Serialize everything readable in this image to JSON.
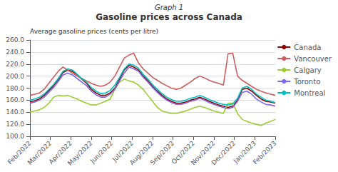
{
  "chart_data": {
    "type": "line",
    "title": "Graph 1",
    "subtitle": "Gasoline prices across Canada",
    "y_label": "Average gasoline prices (cents per litre)",
    "x": [
      0,
      0.2308,
      0.4615,
      0.6923,
      0.9231,
      1.1538,
      1.3846,
      1.6154,
      1.8462,
      2.0769,
      2.3077,
      2.5385,
      2.7692,
      3,
      3.2308,
      3.4615,
      3.6923,
      3.9231,
      4.1538,
      4.3846,
      4.6154,
      4.8462,
      5.0769,
      5.3077,
      5.5385,
      5.7692,
      6,
      6.2308,
      6.4615,
      6.6923,
      6.9231,
      7.1538,
      7.3846,
      7.6154,
      7.8462,
      8.0769,
      8.3077,
      8.5385,
      8.7692,
      9,
      9.2308,
      9.4615,
      9.6923,
      9.9231,
      10.1538,
      10.3846,
      10.6154,
      10.8462,
      11.0769,
      11.3077,
      11.5385,
      11.7692,
      12
    ],
    "xlim": [
      0,
      12
    ],
    "xticks": [
      {
        "value": 0,
        "label": "Feb/2022"
      },
      {
        "value": 1,
        "label": "Mar/2022"
      },
      {
        "value": 2,
        "label": "Apr/2022"
      },
      {
        "value": 3,
        "label": "May/2022"
      },
      {
        "value": 4,
        "label": "Jun/2022"
      },
      {
        "value": 5,
        "label": "Jul/2022"
      },
      {
        "value": 6,
        "label": "Aug/2022"
      },
      {
        "value": 7,
        "label": "Sep/2022"
      },
      {
        "value": 8,
        "label": "Oct/2022"
      },
      {
        "value": 9,
        "label": "Nov/2022"
      },
      {
        "value": 10,
        "label": "Dec/2022"
      },
      {
        "value": 11,
        "label": "Jan/2023"
      },
      {
        "value": 12,
        "label": "Feb/2023"
      }
    ],
    "ylim": [
      100.0,
      260.0
    ],
    "yticks": [
      {
        "value": 100.0,
        "label": "100.0"
      },
      {
        "value": 120.0,
        "label": "120.0"
      },
      {
        "value": 140.0,
        "label": "140.0"
      },
      {
        "value": 160.0,
        "label": "160.0"
      },
      {
        "value": 180.0,
        "label": "180.0"
      },
      {
        "value": 200.0,
        "label": "200.0"
      },
      {
        "value": 220.0,
        "label": "220.0"
      },
      {
        "value": 240.0,
        "label": "240.0"
      },
      {
        "value": 260.0,
        "label": "260.0"
      }
    ],
    "grid": true,
    "legend": "right",
    "series": [
      {
        "name": "Canada",
        "color": "#8B0000",
        "values": [
          157,
          159,
          162,
          168,
          176,
          184,
          194,
          206,
          210,
          208,
          202,
          195,
          188,
          178,
          172,
          168,
          168,
          172,
          180,
          195,
          210,
          218,
          215,
          210,
          200,
          192,
          183,
          175,
          168,
          162,
          158,
          155,
          155,
          157,
          160,
          162,
          165,
          162,
          158,
          155,
          152,
          150,
          148,
          150,
          160,
          178,
          180,
          175,
          168,
          162,
          158,
          157,
          155
        ]
      },
      {
        "name": "Vancouver",
        "color": "#CD5C5C",
        "values": [
          168,
          170,
          172,
          178,
          188,
          198,
          208,
          215,
          210,
          205,
          200,
          196,
          192,
          188,
          185,
          183,
          185,
          190,
          200,
          215,
          230,
          235,
          238,
          222,
          212,
          205,
          198,
          193,
          188,
          184,
          180,
          178,
          180,
          185,
          190,
          196,
          200,
          197,
          193,
          190,
          188,
          185,
          237,
          238,
          200,
          193,
          188,
          183,
          178,
          175,
          172,
          170,
          168
        ]
      },
      {
        "name": "Calgary",
        "color": "#9acd32",
        "values": [
          140,
          142,
          144,
          148,
          155,
          165,
          168,
          167,
          168,
          165,
          162,
          158,
          155,
          152,
          152,
          155,
          158,
          162,
          178,
          190,
          195,
          192,
          190,
          185,
          178,
          168,
          158,
          148,
          142,
          140,
          138,
          138,
          140,
          142,
          145,
          148,
          150,
          148,
          145,
          142,
          140,
          138,
          155,
          155,
          138,
          128,
          125,
          122,
          120,
          118,
          122,
          125,
          128
        ]
      },
      {
        "name": "Toronto",
        "color": "#7B68EE",
        "values": [
          155,
          157,
          160,
          165,
          173,
          181,
          191,
          202,
          205,
          202,
          196,
          190,
          184,
          175,
          169,
          165,
          165,
          170,
          178,
          192,
          205,
          215,
          212,
          208,
          198,
          190,
          181,
          173,
          166,
          160,
          156,
          153,
          153,
          155,
          158,
          160,
          163,
          160,
          156,
          153,
          150,
          148,
          146,
          148,
          158,
          173,
          175,
          170,
          162,
          157,
          153,
          152,
          150
        ]
      },
      {
        "name": "Montreal",
        "color": "#00BFBF",
        "values": [
          160,
          162,
          165,
          170,
          178,
          186,
          196,
          208,
          212,
          210,
          203,
          196,
          190,
          181,
          175,
          171,
          172,
          176,
          185,
          198,
          212,
          220,
          218,
          213,
          203,
          195,
          186,
          178,
          171,
          165,
          161,
          158,
          158,
          160,
          163,
          165,
          168,
          165,
          161,
          158,
          155,
          153,
          152,
          154,
          163,
          180,
          183,
          178,
          170,
          165,
          160,
          158,
          156
        ]
      }
    ]
  }
}
